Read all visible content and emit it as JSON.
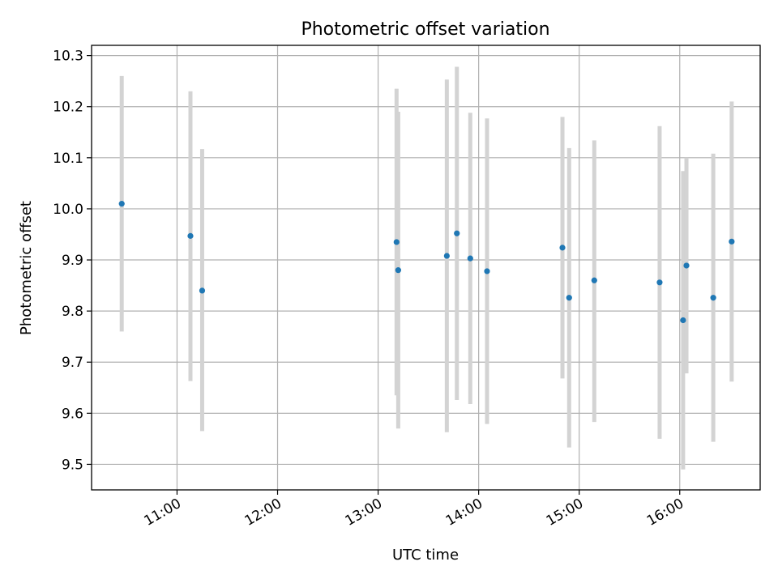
{
  "chart_data": {
    "type": "scatter",
    "title": "Photometric offset variation",
    "xlabel": "UTC time",
    "ylabel": "Photometric offset",
    "x_axis_type": "time",
    "xlim": [
      "10:09",
      "16:48"
    ],
    "ylim": [
      9.45,
      10.32
    ],
    "x_ticks": [
      "11:00",
      "12:00",
      "13:00",
      "14:00",
      "15:00",
      "16:00"
    ],
    "y_ticks": [
      "9.5",
      "9.6",
      "9.7",
      "9.8",
      "9.9",
      "10.0",
      "10.1",
      "10.2",
      "10.3"
    ],
    "grid": true,
    "marker_color": "#1f77b4",
    "errorbar_color": "#d3d3d3",
    "points": [
      {
        "x": "10:27",
        "y": 10.01,
        "ylow": 9.76,
        "yhigh": 10.26
      },
      {
        "x": "11:08",
        "y": 9.947,
        "ylow": 9.663,
        "yhigh": 10.23
      },
      {
        "x": "11:15",
        "y": 9.84,
        "ylow": 9.565,
        "yhigh": 10.117
      },
      {
        "x": "13:11",
        "y": 9.935,
        "ylow": 9.635,
        "yhigh": 10.235
      },
      {
        "x": "13:12",
        "y": 9.88,
        "ylow": 9.57,
        "yhigh": 10.19
      },
      {
        "x": "13:41",
        "y": 9.908,
        "ylow": 9.563,
        "yhigh": 10.253
      },
      {
        "x": "13:47",
        "y": 9.952,
        "ylow": 9.626,
        "yhigh": 10.278
      },
      {
        "x": "13:55",
        "y": 9.903,
        "ylow": 9.618,
        "yhigh": 10.188
      },
      {
        "x": "14:05",
        "y": 9.878,
        "ylow": 9.579,
        "yhigh": 10.177
      },
      {
        "x": "14:50",
        "y": 9.924,
        "ylow": 9.668,
        "yhigh": 10.18
      },
      {
        "x": "14:54",
        "y": 9.826,
        "ylow": 9.533,
        "yhigh": 10.119
      },
      {
        "x": "15:09",
        "y": 9.86,
        "ylow": 9.583,
        "yhigh": 10.134
      },
      {
        "x": "15:48",
        "y": 9.856,
        "ylow": 9.55,
        "yhigh": 10.162
      },
      {
        "x": "16:02",
        "y": 9.782,
        "ylow": 9.49,
        "yhigh": 10.074
      },
      {
        "x": "16:04",
        "y": 9.889,
        "ylow": 9.678,
        "yhigh": 10.1
      },
      {
        "x": "16:20",
        "y": 9.826,
        "ylow": 9.544,
        "yhigh": 10.108
      },
      {
        "x": "16:31",
        "y": 9.936,
        "ylow": 9.662,
        "yhigh": 10.21
      }
    ]
  }
}
